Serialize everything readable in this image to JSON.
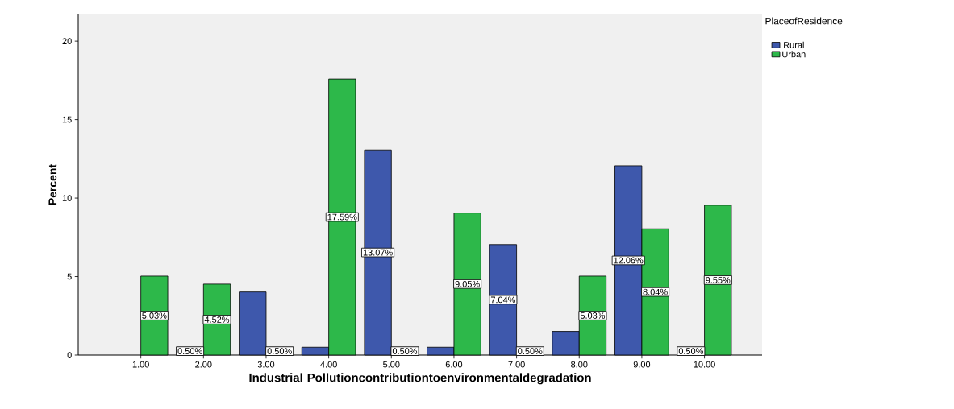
{
  "chart_data": {
    "type": "bar",
    "xlabel": "Industrial Pollutioncontributiontoenvironmentaldegradation",
    "ylabel": "Percent",
    "legend_title": "PlaceofResidence",
    "legend": "top right",
    "grid": false,
    "categories": [
      "1.00",
      "2.00",
      "3.00",
      "4.00",
      "5.00",
      "6.00",
      "7.00",
      "8.00",
      "9.00",
      "10.00"
    ],
    "ylim": [
      0,
      21.7
    ],
    "yticks": [
      0,
      5,
      10,
      15,
      20
    ],
    "series": [
      {
        "name": "Rural",
        "color": "#3e58ac",
        "values": [
          null,
          0.5,
          4.02,
          0.5,
          13.07,
          0.5,
          7.04,
          1.51,
          12.06,
          0.5
        ],
        "value_labels": [
          null,
          "0.50%",
          null,
          null,
          "13.07%",
          null,
          "7.04%",
          null,
          "12.06%",
          "0.50%"
        ]
      },
      {
        "name": "Urban",
        "color": "#2db84a",
        "values": [
          5.03,
          4.52,
          0.5,
          17.59,
          0.5,
          9.05,
          0.5,
          5.03,
          8.04,
          9.55
        ],
        "value_labels": [
          "5.03%",
          "4.52%",
          "0.50%",
          "17.59%",
          "0.50%",
          "9.05%",
          "0.50%",
          "5.03%",
          "8.04%",
          "9.55%"
        ]
      }
    ]
  }
}
